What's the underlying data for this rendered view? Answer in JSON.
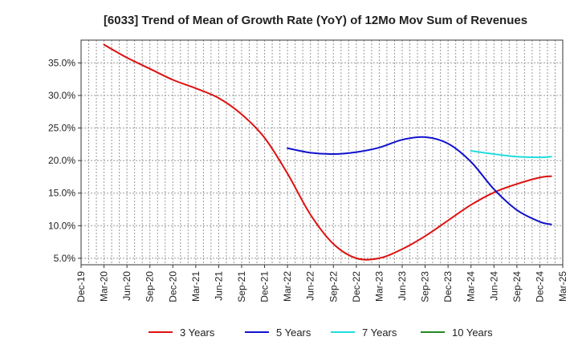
{
  "chart_data": {
    "type": "line",
    "title": "[6033]  Trend of Mean of Growth Rate (YoY) of 12Mo Mov Sum of Revenues",
    "xlabel": "",
    "ylabel": "",
    "x_ticks": [
      "Dec-19",
      "Mar-20",
      "Jun-20",
      "Sep-20",
      "Dec-20",
      "Mar-21",
      "Jun-21",
      "Sep-21",
      "Dec-21",
      "Mar-22",
      "Jun-22",
      "Sep-22",
      "Dec-22",
      "Mar-23",
      "Jun-23",
      "Sep-23",
      "Dec-23",
      "Mar-24",
      "Jun-24",
      "Sep-24",
      "Dec-24",
      "Mar-25"
    ],
    "y_ticks": [
      {
        "value": 5,
        "label": "5.0%"
      },
      {
        "value": 10,
        "label": "10.0%"
      },
      {
        "value": 15,
        "label": "15.0%"
      },
      {
        "value": 20,
        "label": "20.0%"
      },
      {
        "value": 25,
        "label": "25.0%"
      },
      {
        "value": 30,
        "label": "30.0%"
      },
      {
        "value": 35,
        "label": "35.0%"
      }
    ],
    "ylim": [
      4,
      38.5
    ],
    "xlim": [
      0,
      21
    ],
    "grid": true,
    "legend_position": "bottom",
    "series": [
      {
        "name": "3 Years",
        "color": "#dd1111",
        "points": [
          [
            1,
            37.8
          ],
          [
            2,
            35.8
          ],
          [
            3,
            34.1
          ],
          [
            4,
            32.4
          ],
          [
            5,
            31.1
          ],
          [
            6,
            29.6
          ],
          [
            7,
            27.1
          ],
          [
            8,
            23.5
          ],
          [
            9,
            18.0
          ],
          [
            10,
            11.7
          ],
          [
            11,
            7.2
          ],
          [
            12,
            5.0
          ],
          [
            13,
            5.0
          ],
          [
            14,
            6.4
          ],
          [
            15,
            8.4
          ],
          [
            16,
            10.8
          ],
          [
            17,
            13.2
          ],
          [
            18,
            15.1
          ],
          [
            19,
            16.4
          ],
          [
            20,
            17.4
          ],
          [
            20.5,
            17.6
          ]
        ]
      },
      {
        "name": "5 Years",
        "color": "#1111cc",
        "points": [
          [
            9,
            21.9
          ],
          [
            10,
            21.2
          ],
          [
            11,
            21.0
          ],
          [
            12,
            21.3
          ],
          [
            13,
            22.0
          ],
          [
            14,
            23.2
          ],
          [
            15,
            23.6
          ],
          [
            16,
            22.6
          ],
          [
            17,
            19.8
          ],
          [
            18,
            15.6
          ],
          [
            19,
            12.4
          ],
          [
            20,
            10.6
          ],
          [
            20.5,
            10.2
          ]
        ]
      },
      {
        "name": "7 Years",
        "color": "#22dddd",
        "points": [
          [
            17,
            21.5
          ],
          [
            18,
            21.0
          ],
          [
            19,
            20.6
          ],
          [
            20,
            20.5
          ],
          [
            20.5,
            20.6
          ]
        ]
      },
      {
        "name": "10 Years",
        "color": "#228822",
        "points": []
      }
    ]
  }
}
